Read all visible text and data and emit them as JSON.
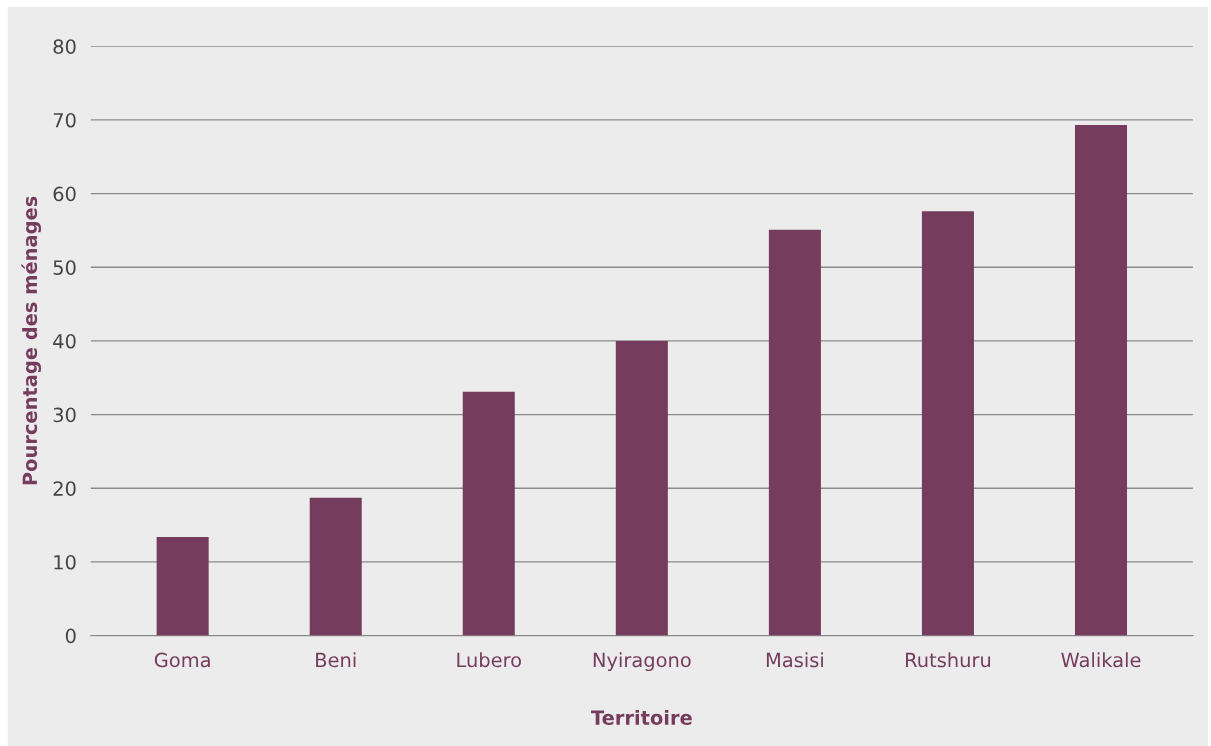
{
  "chart_data": {
    "type": "bar",
    "xlabel": "Territoire",
    "ylabel": "Pourcentage des ménages",
    "categories": [
      "Goma",
      "Beni",
      "Lubero",
      "Nyiragono",
      "Masisi",
      "Rutshuru",
      "Walikale"
    ],
    "values": [
      13.4,
      18.7,
      33.1,
      40.0,
      55.1,
      57.6,
      69.3
    ],
    "color": "#763c5e",
    "ylim": [
      0,
      80
    ],
    "yticks": [
      0,
      10,
      20,
      30,
      40,
      50,
      60,
      70,
      80
    ],
    "grid": "y",
    "legend": false
  }
}
